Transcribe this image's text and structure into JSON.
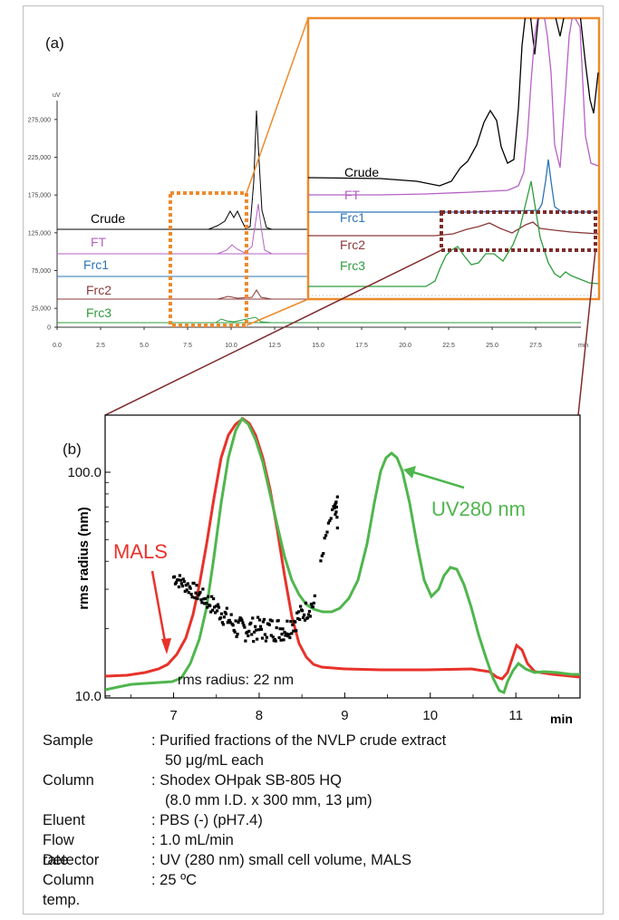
{
  "panel_a": {
    "label": "(a)",
    "y_unit": "uV",
    "y_ticks": [
      "275,000",
      "225,000",
      "175,000",
      "125,000",
      "75,000",
      "25,000",
      "0"
    ],
    "x_ticks": [
      "0.0",
      "2.5",
      "5.0",
      "7.5",
      "10.0",
      "12.5",
      "15.0",
      "17.5",
      "20.0",
      "22.5",
      "25.0",
      "27.5"
    ],
    "x_unit": "min",
    "trace_labels": [
      "Crude",
      "FT",
      "Frc1",
      "Frc2",
      "Frc3"
    ],
    "inset_labels": [
      "Crude",
      "FT",
      "Frc1",
      "Frc2",
      "Frc3"
    ]
  },
  "panel_b": {
    "label": "(b)",
    "ylabel": "rms radius (nm)",
    "y_ticks": [
      "100.0",
      "10.0"
    ],
    "x_ticks": [
      "7",
      "8",
      "9",
      "10",
      "11"
    ],
    "x_unit": "min",
    "mals_label": "MALS",
    "uv_label": "UV280 nm",
    "annotation": "rms radius: 22 nm"
  },
  "conditions": {
    "sample_key": "Sample",
    "sample_val": ": Purified fractions of the NVLP crude extract",
    "sample_val2": "50 μg/mL each",
    "column_key": "Column",
    "column_val": ": Shodex OHpak SB-805 HQ",
    "column_val2": "(8.0 mm I.D. x 300 mm, 13 μm)",
    "eluent_key": "Eluent",
    "eluent_val": ": PBS (-) (pH7.4)",
    "flow_key": "Flow rate",
    "flow_val": ": 1.0 mL/min",
    "detector_key": "Detector",
    "detector_val": ": UV (280 nm) small cell volume, MALS",
    "temp_key": "Column temp.",
    "temp_val": ": 25 ºC"
  },
  "colors": {
    "crude": "#000000",
    "ft": "#b561c4",
    "frc1": "#2e75b6",
    "frc2": "#8b3a3a",
    "frc3": "#2e9d3e",
    "mals": "#e8322a",
    "uv": "#4fb64d",
    "zoom_box": "#ee8a2c",
    "zoom_box_b": "#7f2b2b"
  },
  "chart_data": [
    {
      "type": "line",
      "x_range": [
        0,
        28.5
      ],
      "y_range": [
        0,
        300000
      ],
      "series": [
        {
          "name": "Crude",
          "baseline": 135000
        },
        {
          "name": "FT",
          "baseline": 100000
        },
        {
          "name": "Frc1",
          "baseline": 68000
        },
        {
          "name": "Frc2",
          "baseline": 34000
        },
        {
          "name": "Frc3",
          "baseline": 3000
        }
      ]
    },
    {
      "type": "line",
      "x_range": [
        6.2,
        11.75
      ],
      "y_scale": "log",
      "y_range": [
        10,
        180
      ],
      "series": [
        {
          "name": "MALS"
        },
        {
          "name": "UV280 nm"
        }
      ]
    }
  ]
}
